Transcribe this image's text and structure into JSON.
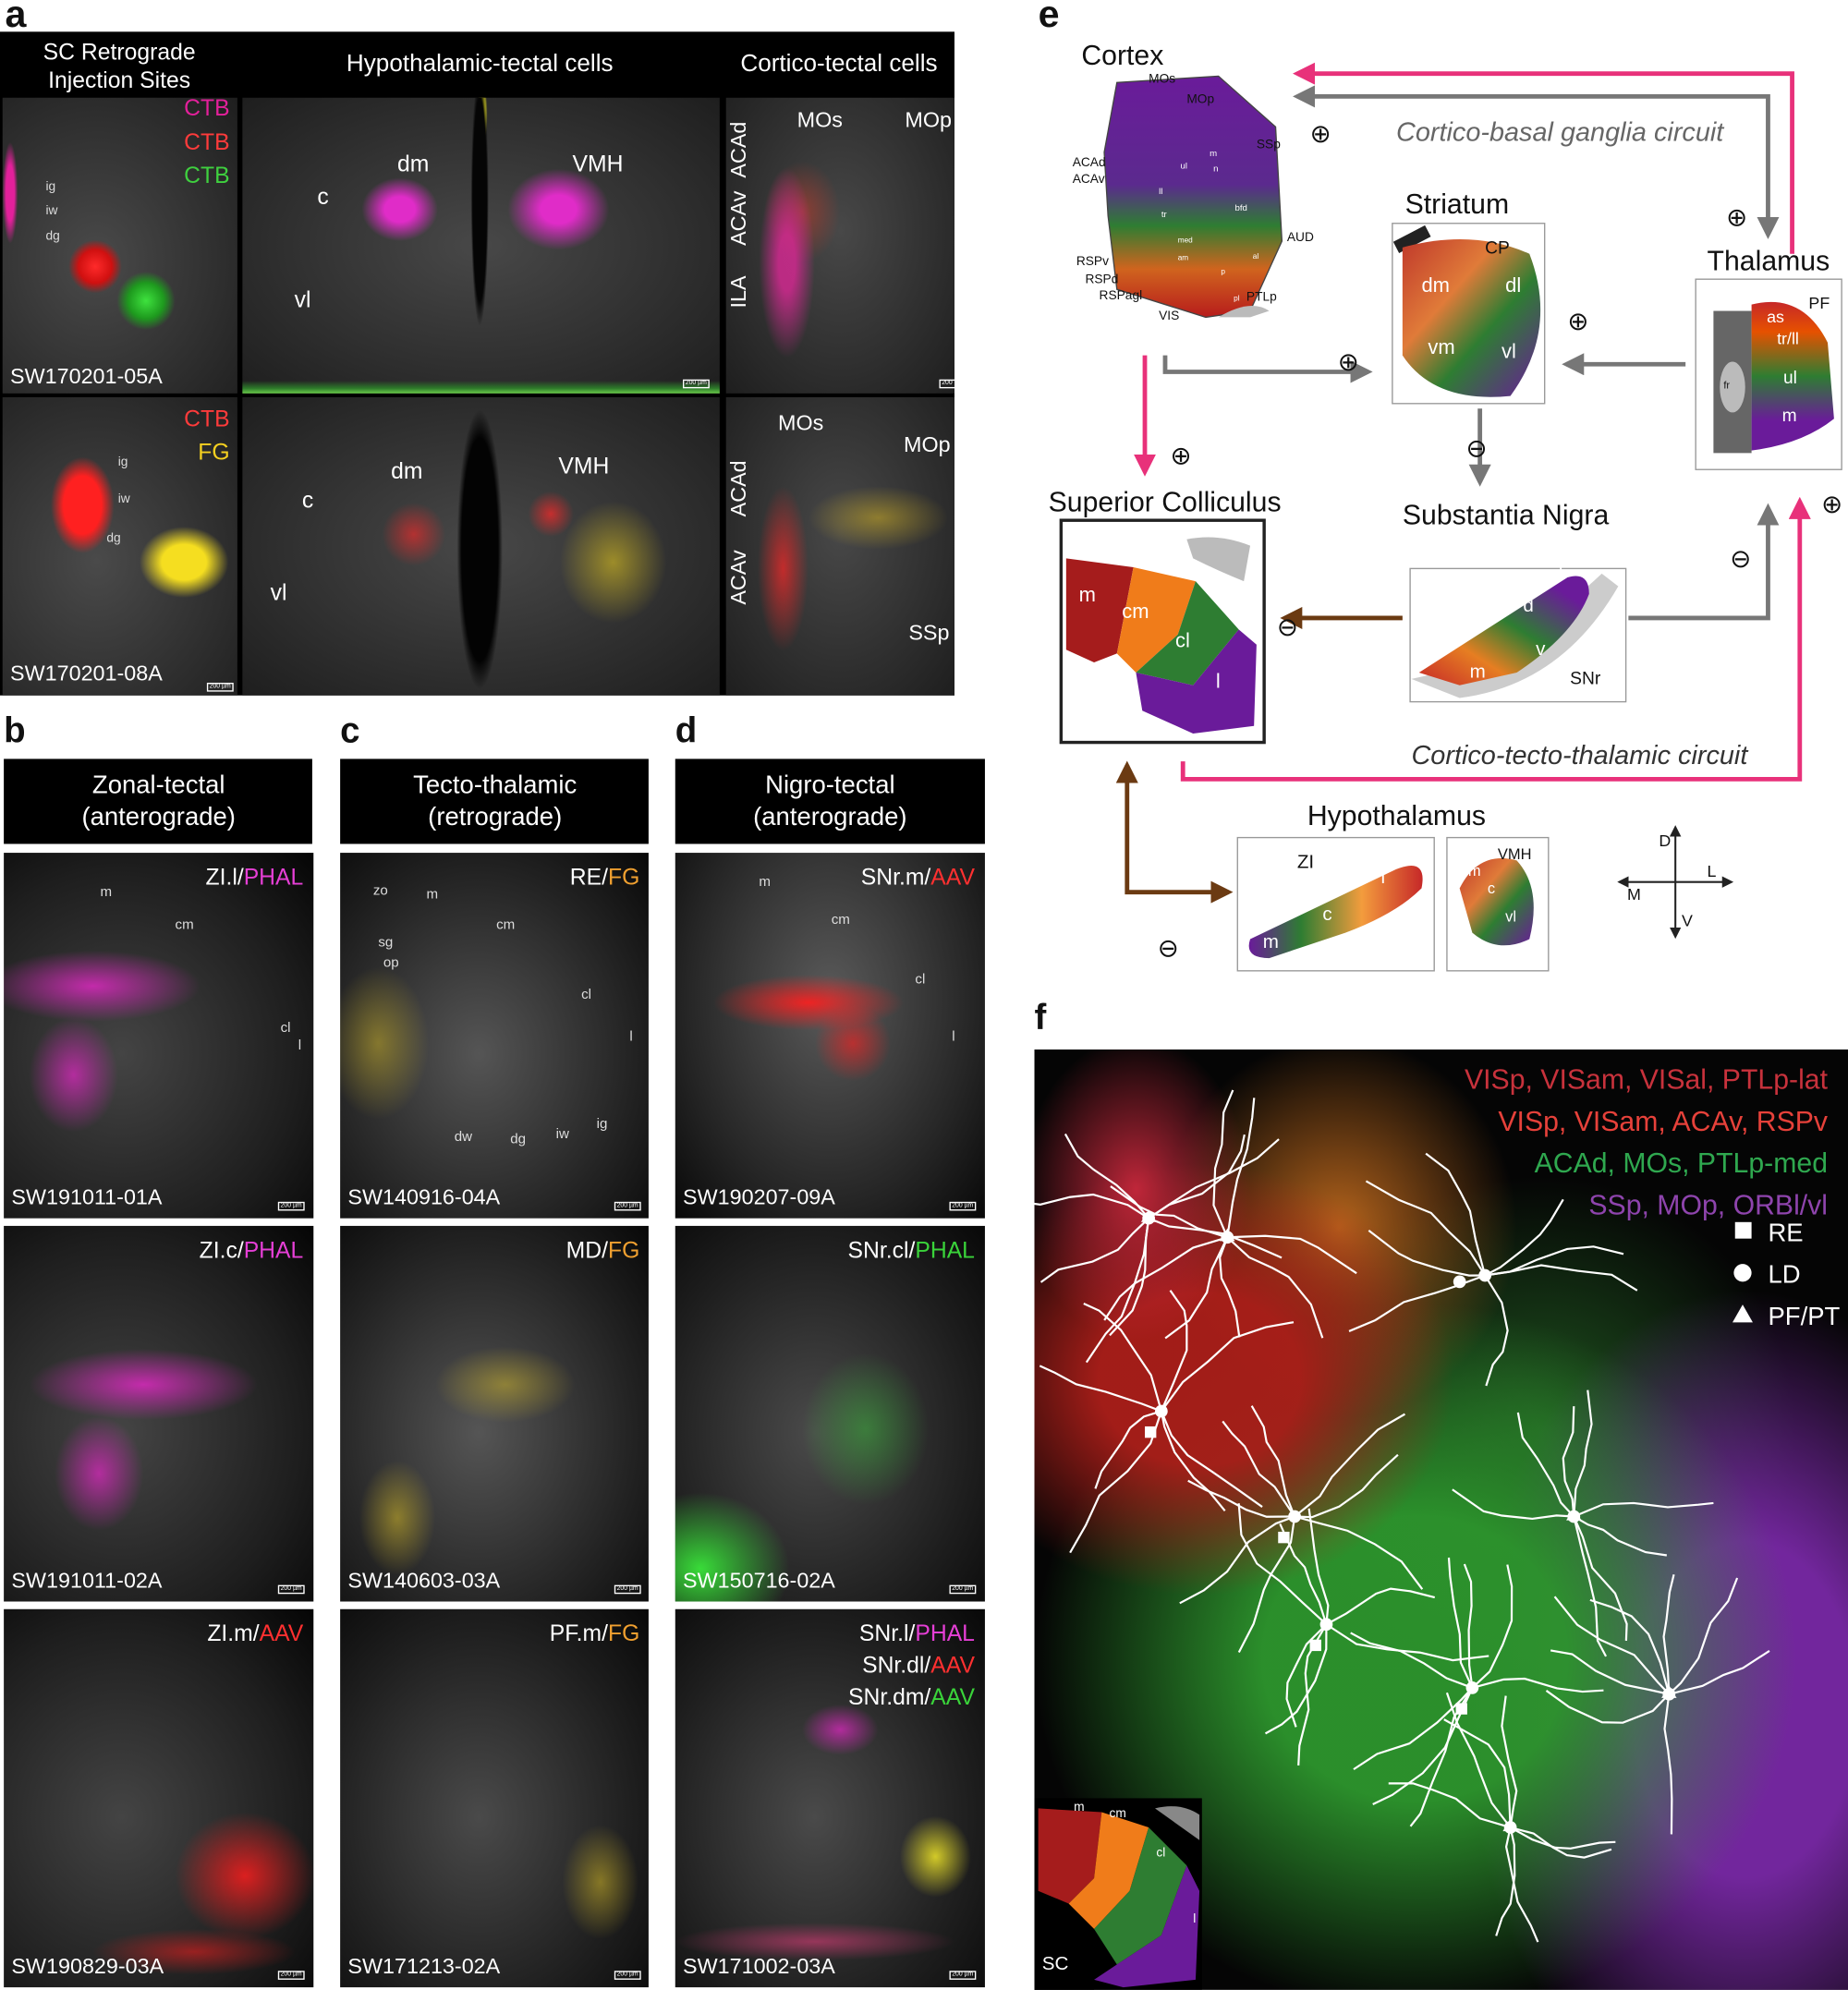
{
  "panel_a": {
    "label": "a",
    "headers": [
      [
        "SC Retrograde",
        "Injection Sites"
      ],
      "Hypothalamic-tectal cells",
      "Cortico-tectal cells"
    ],
    "rows": [
      {
        "injection": {
          "tracers": [
            "CTB",
            "CTB",
            "CTB"
          ],
          "layers": [
            "ig",
            "iw",
            "dg"
          ],
          "sample": "SW170201-05A"
        },
        "hypothalamus": [
          "dm",
          "VMH",
          "c",
          "vl"
        ],
        "cortex": [
          "ACAd",
          "MOs",
          "MOp",
          "ACAv",
          "ILA"
        ]
      },
      {
        "injection": {
          "tracers": [
            "CTB",
            "FG"
          ],
          "layers": [
            "ig",
            "iw",
            "dg"
          ],
          "sample": "SW170201-08A"
        },
        "hypothalamus": [
          "dm",
          "VMH",
          "c",
          "vl"
        ],
        "cortex": [
          "MOs",
          "MOp",
          "ACAd",
          "ACAv",
          "SSp"
        ]
      }
    ]
  },
  "scale_bar": "200 µm",
  "panel_b": {
    "label": "b",
    "header": [
      "Zonal-tectal",
      "(anterograde)"
    ],
    "rows": [
      {
        "tracers": [
          [
            "ZI.l/",
            "PHAL"
          ]
        ],
        "layers": [
          "m",
          "cm",
          "cl",
          "l"
        ],
        "sample": "SW191011-01A"
      },
      {
        "tracers": [
          [
            "ZI.c/",
            "PHAL"
          ]
        ],
        "sample": "SW191011-02A"
      },
      {
        "tracers": [
          [
            "ZI.m/",
            "AAV"
          ]
        ],
        "sample": "SW190829-03A"
      }
    ]
  },
  "panel_c": {
    "label": "c",
    "header": [
      "Tecto-thalamic",
      "(retrograde)"
    ],
    "rows": [
      {
        "tracers": [
          [
            "RE/",
            "FG"
          ]
        ],
        "layers": [
          "zo",
          "m",
          "cm",
          "sg",
          "op",
          "cl",
          "l",
          "dw",
          "dg",
          "iw",
          "ig"
        ],
        "sample": "SW140916-04A"
      },
      {
        "tracers": [
          [
            "MD/",
            "FG"
          ]
        ],
        "sample": "SW140603-03A"
      },
      {
        "tracers": [
          [
            "PF.m/",
            "FG"
          ]
        ],
        "sample": "SW171213-02A"
      }
    ]
  },
  "panel_d": {
    "label": "d",
    "header": [
      "Nigro-tectal",
      "(anterograde)"
    ],
    "rows": [
      {
        "tracers": [
          [
            "SNr.m/",
            "AAV"
          ]
        ],
        "layers": [
          "m",
          "cm",
          "cl",
          "l"
        ],
        "sample": "SW190207-09A"
      },
      {
        "tracers": [
          [
            "SNr.cl/",
            "PHAL"
          ]
        ],
        "sample": "SW150716-02A"
      },
      {
        "tracers": [
          [
            "SNr.l/",
            "PHAL"
          ],
          [
            "SNr.dl/",
            "AAV"
          ],
          [
            "SNr.dm/",
            "AAV"
          ]
        ],
        "sample": "SW171002-03A"
      }
    ]
  },
  "panel_e": {
    "label": "e",
    "cortex": {
      "title": "Cortex",
      "labels": [
        "MOs",
        "MOp",
        "SSp",
        "ACAd",
        "ACAv",
        "ul",
        "ll",
        "tr",
        "bfd",
        "m",
        "n",
        "AUD",
        "RSPv",
        "RSPd",
        "RSPagl",
        "VIS",
        "PTLp",
        "med",
        "am",
        "p",
        "pl",
        "al"
      ]
    },
    "striatum": {
      "title": "Striatum",
      "labels": [
        "CP",
        "dm",
        "dl",
        "vm",
        "vl"
      ]
    },
    "thalamus": {
      "title": "Thalamus",
      "labels": [
        "PF",
        "as",
        "tr/ll",
        "ul",
        "m",
        "fr"
      ]
    },
    "superior_colliculus": {
      "title": "Superior Colliculus",
      "labels": [
        "m",
        "cm",
        "cl",
        "l"
      ]
    },
    "substantia_nigra": {
      "title": "Substantia Nigra",
      "labels": [
        "l",
        "d",
        "v",
        "m",
        "SNr"
      ]
    },
    "hypothalamus": {
      "title": "Hypothalamus",
      "zi_labels": [
        "ZI",
        "l",
        "c",
        "m"
      ],
      "vmh_labels": [
        "VMH",
        "dm",
        "c",
        "vl"
      ]
    },
    "circuits": [
      "Cortico-basal ganglia circuit",
      "Cortico-tecto-thalamic circuit"
    ],
    "excitatory": "⊕",
    "inhibitory": "⊖",
    "compass": [
      "D",
      "L",
      "M",
      "V"
    ]
  },
  "panel_f": {
    "label": "f",
    "legend": [
      "VISp, VISam, VISal, PTLp-lat",
      "VISp, VISam, ACAv, RSPv",
      "ACAd, MOs, PTLp-med",
      "SSp, MOp, ORBl/vl"
    ],
    "markers": [
      "RE",
      "LD",
      "PF/PT"
    ],
    "inset": [
      "m",
      "cm",
      "cl",
      "l",
      "SC"
    ]
  }
}
